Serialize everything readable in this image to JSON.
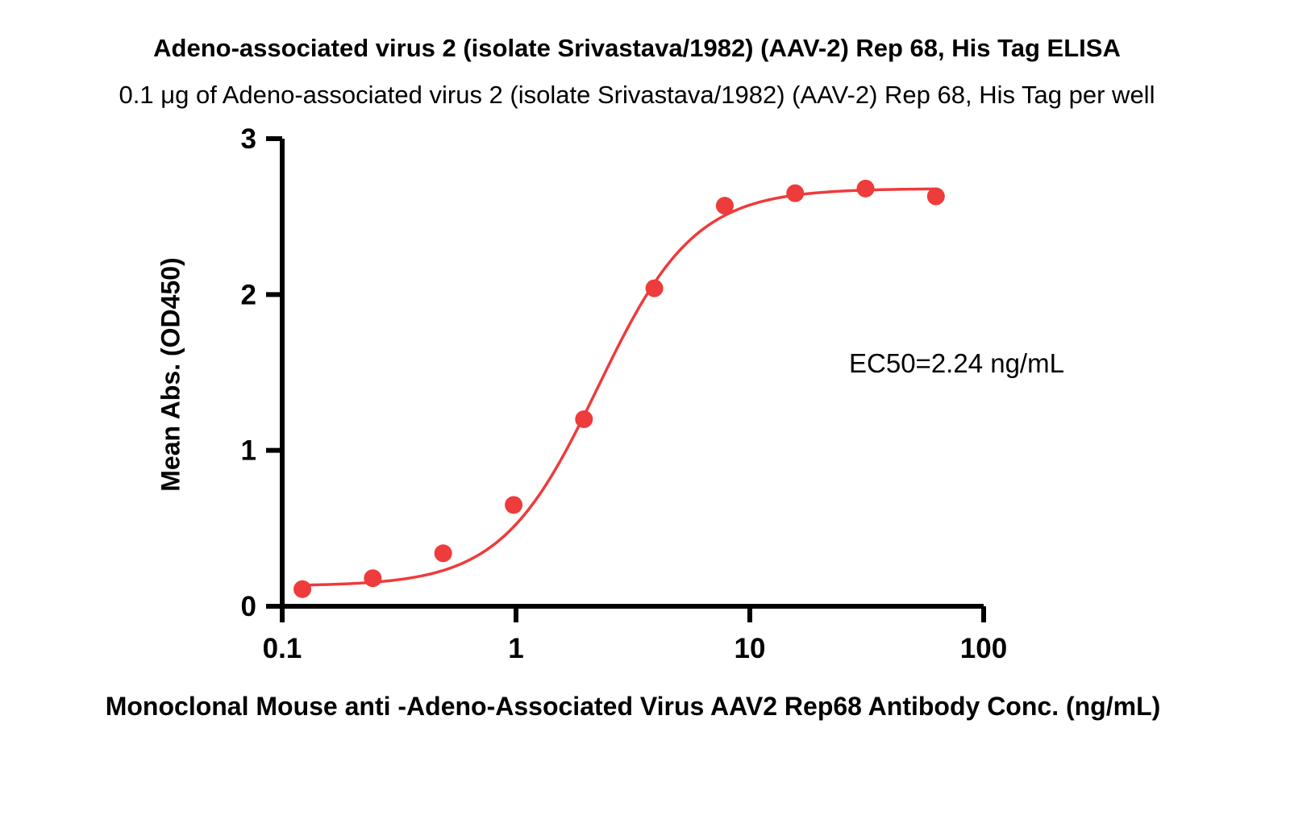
{
  "header": {
    "title": "Adeno-associated virus 2 (isolate Srivastava/1982) (AAV-2) Rep 68, His Tag ELISA",
    "subtitle": "0.1 μg of Adeno-associated virus 2 (isolate Srivastava/1982) (AAV-2) Rep 68, His Tag per well"
  },
  "chart_data": {
    "type": "scatter",
    "x": [
      0.122,
      0.244,
      0.488,
      0.977,
      1.953,
      3.906,
      7.813,
      15.625,
      31.25,
      62.5
    ],
    "y": [
      0.11,
      0.18,
      0.34,
      0.65,
      1.2,
      2.04,
      2.57,
      2.65,
      2.68,
      2.63
    ],
    "title": "",
    "xlabel": "Monoclonal Mouse anti -Adeno-Associated Virus AAV2 Rep68 Antibody Conc. (ng/mL)",
    "ylabel": "Mean Abs. (OD450)",
    "xscale": "log",
    "xlim": [
      0.1,
      100
    ],
    "ylim": [
      0,
      3
    ],
    "xticks": [
      0.1,
      1,
      10,
      100
    ],
    "xtick_labels": [
      "0.1",
      "1",
      "10",
      "100"
    ],
    "yticks": [
      0,
      1,
      2,
      3
    ],
    "ytick_labels": [
      "0",
      "1",
      "2",
      "3"
    ],
    "annotation": "EC50=2.24 ng/mL",
    "ec50_ng_per_ml": 2.24,
    "series_color": "#EE3B3B",
    "axis_color": "#000000",
    "curve": {
      "model": "4PL",
      "bottom": 0.13,
      "top": 2.68,
      "ec50": 2.24,
      "hill": 2.1
    },
    "grid": false,
    "legend": "none"
  }
}
